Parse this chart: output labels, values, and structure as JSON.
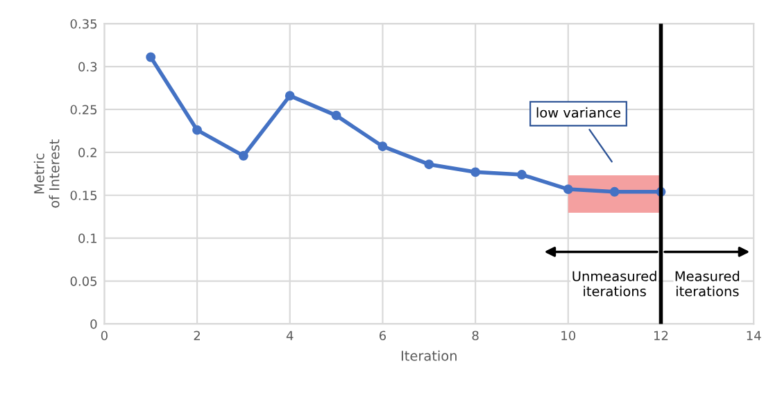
{
  "chart_data": {
    "type": "line",
    "xlabel": "Iteration",
    "ylabel": "Metric\nof Interest",
    "x": [
      1,
      2,
      3,
      4,
      5,
      6,
      7,
      8,
      9,
      10,
      11,
      12
    ],
    "series": [
      {
        "color": "#4472c4",
        "values": [
          0.311,
          0.226,
          0.196,
          0.266,
          0.243,
          0.207,
          0.186,
          0.177,
          0.174,
          0.157,
          0.154,
          0.154
        ]
      }
    ],
    "marker": "circle",
    "line_style": "solid",
    "grid": true,
    "xlim": [
      0,
      14
    ],
    "xticks": [
      0,
      2,
      4,
      6,
      8,
      10,
      12,
      14
    ],
    "ylim": [
      0,
      0.35
    ],
    "yticks": [
      0,
      0.05,
      0.1,
      0.15,
      0.2,
      0.25,
      0.3,
      0.35
    ],
    "ref_lines": [
      {
        "axis": "x",
        "value": 12,
        "color": "#000000"
      }
    ],
    "bands": [
      {
        "axis": "x",
        "from": 10,
        "to": 12,
        "color": "#f4a0a0"
      }
    ],
    "annotations": [
      "low variance",
      "Unmeasured\niterations",
      "Measured\niterations"
    ]
  }
}
